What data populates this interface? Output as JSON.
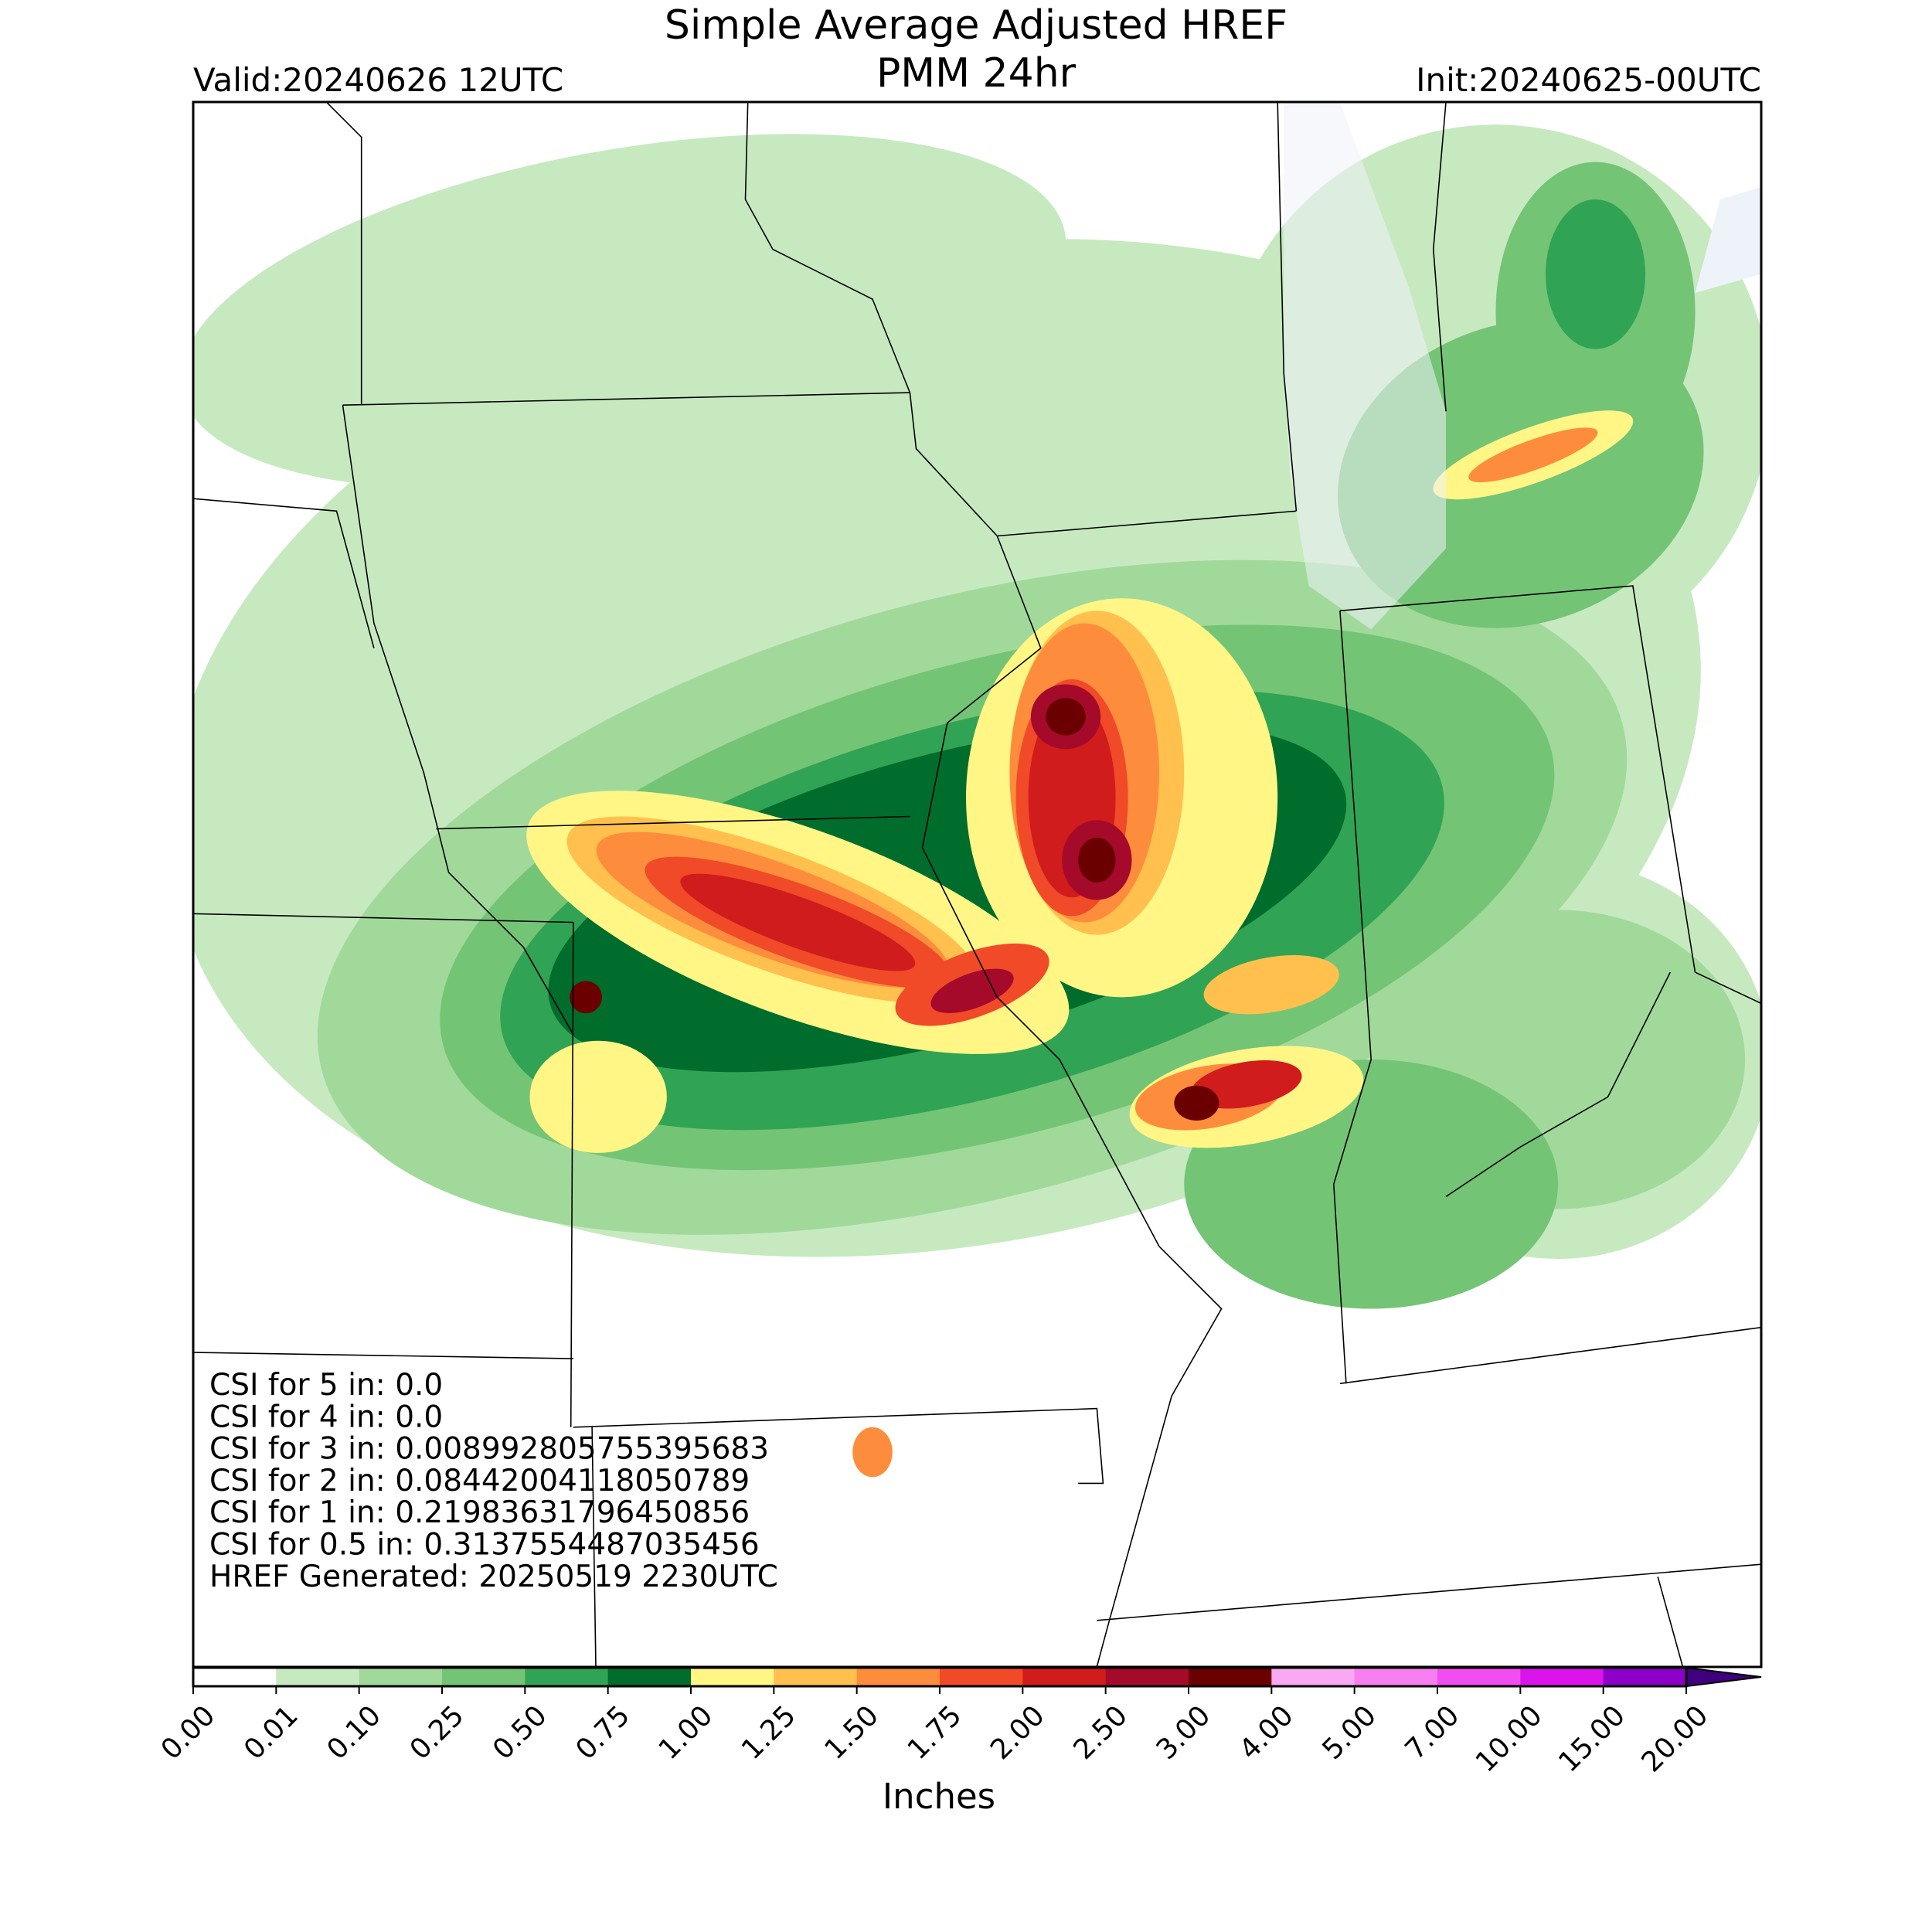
{
  "header": {
    "title_line1": "Simple Average Adjusted HREF",
    "title_line2": "PMM 24hr",
    "valid": "Valid:20240626 12UTC",
    "init": "Init:20240625-00UTC"
  },
  "annotations": [
    "CSI for 5 in: 0.0",
    "CSI for 4 in: 0.0",
    "CSI for 3 in: 0.008992805755395683",
    "CSI for 2 in: 0.08442004118050789",
    "CSI for 1 in: 0.21983631796450856",
    "CSI for 0.5 in: 0.3137554487035456",
    "HREF Generated: 20250519 2230UTC"
  ],
  "colorbar": {
    "label": "Inches",
    "ticks": [
      {
        "value": 0,
        "label": "0.00"
      },
      {
        "value": 0.01,
        "label": "0.01"
      },
      {
        "value": 0.1,
        "label": "0.10"
      },
      {
        "value": 0.25,
        "label": "0.25"
      },
      {
        "value": 0.5,
        "label": "0.50"
      },
      {
        "value": 0.75,
        "label": "0.75"
      },
      {
        "value": 1,
        "label": "1.00"
      },
      {
        "value": 1.25,
        "label": "1.25"
      },
      {
        "value": 1.5,
        "label": "1.50"
      },
      {
        "value": 1.75,
        "label": "1.75"
      },
      {
        "value": 2,
        "label": "2.00"
      },
      {
        "value": 2.5,
        "label": "2.50"
      },
      {
        "value": 3,
        "label": "3.00"
      },
      {
        "value": 4,
        "label": "4.00"
      },
      {
        "value": 5,
        "label": "5.00"
      },
      {
        "value": 7,
        "label": "7.00"
      },
      {
        "value": 10,
        "label": "10.00"
      },
      {
        "value": 15,
        "label": "15.00"
      },
      {
        "value": 20,
        "label": "20.00"
      }
    ],
    "colors": [
      "#ffffff",
      "#c7e9c0",
      "#a1d99b",
      "#74c476",
      "#31a354",
      "#006d2c",
      "#fff685",
      "#ffc04d",
      "#fd8d3c",
      "#f04a28",
      "#d01c1c",
      "#a50a2a",
      "#6b0000",
      "#f9a8f2",
      "#f77ff0",
      "#f24df0",
      "#dc14ec",
      "#8c00c8"
    ],
    "extend_color": "#3f007d"
  }
}
